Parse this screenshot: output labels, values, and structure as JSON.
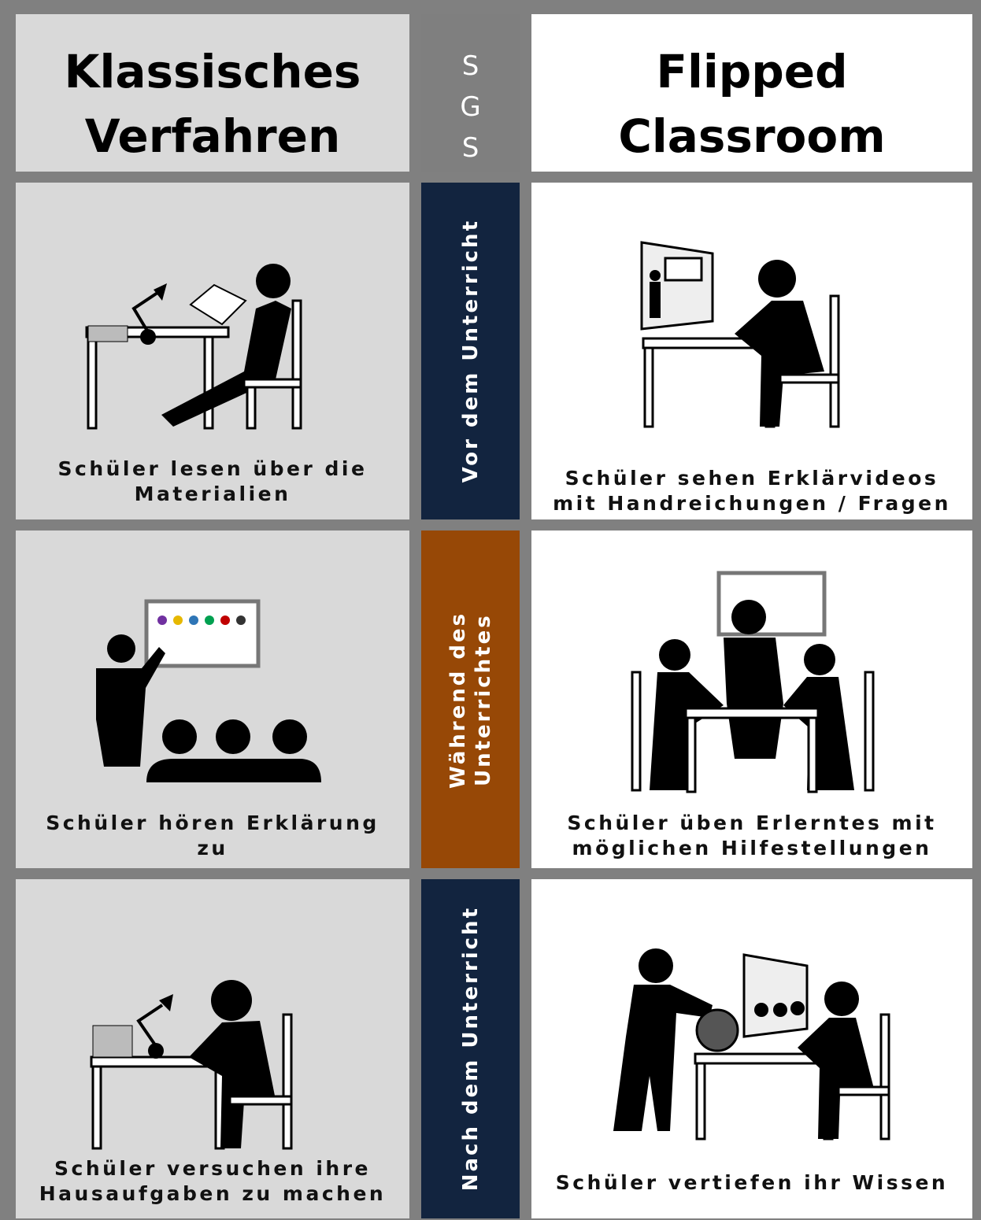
{
  "header": {
    "left": [
      "Klassisches",
      "Verfahren"
    ],
    "middle": [
      "S",
      "G",
      "S"
    ],
    "right": [
      "Flipped",
      "Classroom"
    ]
  },
  "rows": [
    {
      "phase": "Vor dem Unterricht",
      "left": [
        "Schüler lesen über die",
        "Materialien"
      ],
      "right": [
        "Schüler sehen Erklärvideos",
        "mit Handreichungen / Fragen"
      ]
    },
    {
      "phase": "Während des Unterrichtes",
      "left": [
        "Schüler hören Erklärung",
        "zu"
      ],
      "right": [
        "Schüler üben Erlerntes mit",
        "möglichen Hilfestellungen"
      ]
    },
    {
      "phase": "Nach dem Unterricht",
      "left": [
        "Schüler versuchen ihre",
        "Hausaufgaben zu machen"
      ],
      "right": [
        "Schüler vertiefen ihr Wissen"
      ]
    }
  ]
}
